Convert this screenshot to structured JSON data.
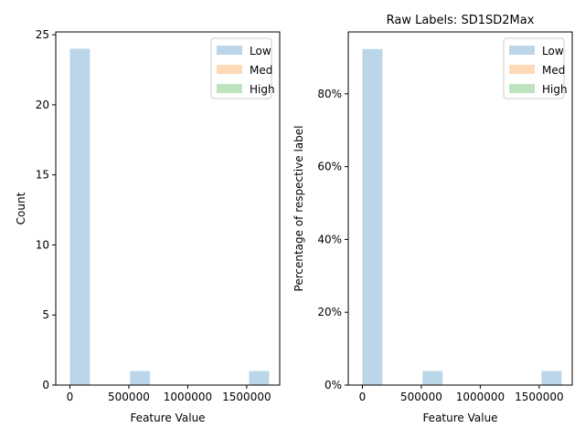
{
  "chart_data": [
    {
      "type": "bar",
      "title": "",
      "xlabel": "Feature Value",
      "ylabel": "Count",
      "xlim": [
        -120000,
        1780000
      ],
      "ylim": [
        0,
        25.2
      ],
      "xticks": [
        {
          "value": 0,
          "label": "0"
        },
        {
          "value": 500000,
          "label": "500000"
        },
        {
          "value": 1000000,
          "label": "1000000"
        },
        {
          "value": 1500000,
          "label": "1500000"
        }
      ],
      "yticks": [
        {
          "value": 0,
          "label": "0"
        },
        {
          "value": 5,
          "label": "5"
        },
        {
          "value": 10,
          "label": "10"
        },
        {
          "value": 15,
          "label": "15"
        },
        {
          "value": 20,
          "label": "20"
        },
        {
          "value": 25,
          "label": "25"
        }
      ],
      "legend_position": "top-right",
      "series": [
        {
          "name": "Low",
          "color": "#1f77b4",
          "bins": [
            {
              "x0": 0,
              "x1": 170000,
              "value": 24
            },
            {
              "x0": 510000,
              "x1": 680000,
              "value": 1
            },
            {
              "x0": 1520000,
              "x1": 1690000,
              "value": 1
            }
          ]
        },
        {
          "name": "Med",
          "color": "#ff7f0e",
          "bins": []
        },
        {
          "name": "High",
          "color": "#2ca02c",
          "bins": []
        }
      ]
    },
    {
      "type": "bar",
      "title": "Raw Labels: SD1SD2Max",
      "xlabel": "Feature Value",
      "ylabel": "Percentage of respective label",
      "xlim": [
        -120000,
        1780000
      ],
      "ylim": [
        0,
        97
      ],
      "xticks": [
        {
          "value": 0,
          "label": "0"
        },
        {
          "value": 500000,
          "label": "500000"
        },
        {
          "value": 1000000,
          "label": "1000000"
        },
        {
          "value": 1500000,
          "label": "1500000"
        }
      ],
      "yticks": [
        {
          "value": 0,
          "label": "0%"
        },
        {
          "value": 20,
          "label": "20%"
        },
        {
          "value": 40,
          "label": "40%"
        },
        {
          "value": 60,
          "label": "60%"
        },
        {
          "value": 80,
          "label": "80%"
        }
      ],
      "legend_position": "top-right",
      "series": [
        {
          "name": "Low",
          "color": "#1f77b4",
          "bins": [
            {
              "x0": 0,
              "x1": 170000,
              "value": 92.3
            },
            {
              "x0": 510000,
              "x1": 680000,
              "value": 3.85
            },
            {
              "x0": 1520000,
              "x1": 1690000,
              "value": 3.85
            }
          ]
        },
        {
          "name": "Med",
          "color": "#ff7f0e",
          "bins": []
        },
        {
          "name": "High",
          "color": "#2ca02c",
          "bins": []
        }
      ]
    }
  ]
}
